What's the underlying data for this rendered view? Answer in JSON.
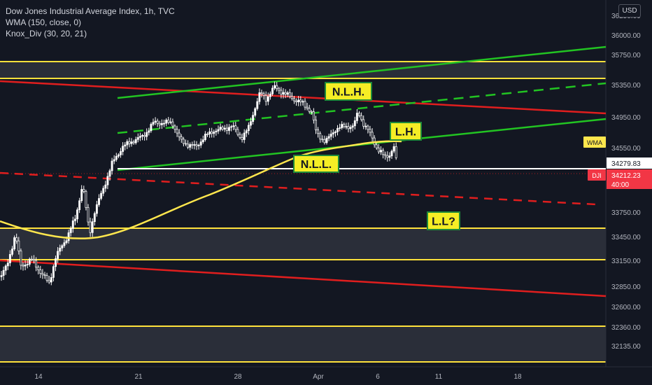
{
  "header": {
    "title_line": "Dow Jones Industrial Average Index, 1h, TVC",
    "indicator_1": "WMA (150, close, 0)",
    "indicator_2": "Knox_Div (30, 20, 21)",
    "currency_button": "USD"
  },
  "chart_data": {
    "type": "candlestick",
    "symbol": "DJI",
    "x_tick_labels": [
      "14",
      "21",
      "28",
      "Apr",
      "6",
      "11",
      "18"
    ],
    "y_tick_labels": [
      36250,
      36000,
      35750,
      35350,
      34950,
      34550,
      33750,
      33450,
      33150,
      32850,
      32600,
      32360,
      32135
    ],
    "y_range": [
      31800,
      36300
    ],
    "scale": "linear",
    "last_price": 34212.23,
    "last_price_label": "34212.23",
    "countdown": "40:00",
    "level_label": "34279.83",
    "wma_tag": "WMA",
    "symbol_tag": "DJI",
    "annotations": [
      "N.L.H.",
      "L.H.",
      "N.L.L.",
      "L.L?"
    ],
    "colors": {
      "up": "#ffffff",
      "down": "#ffffff",
      "wma": "#ffe74d",
      "support_resistance": "#ffe23b",
      "channel": "#22c422",
      "trendline": "#e01e1e",
      "zone_fill": "#2a2e39",
      "price_tag": "#f23645",
      "annotation_fill": "#f5ee25",
      "annotation_border": "#1f8a3a"
    }
  }
}
